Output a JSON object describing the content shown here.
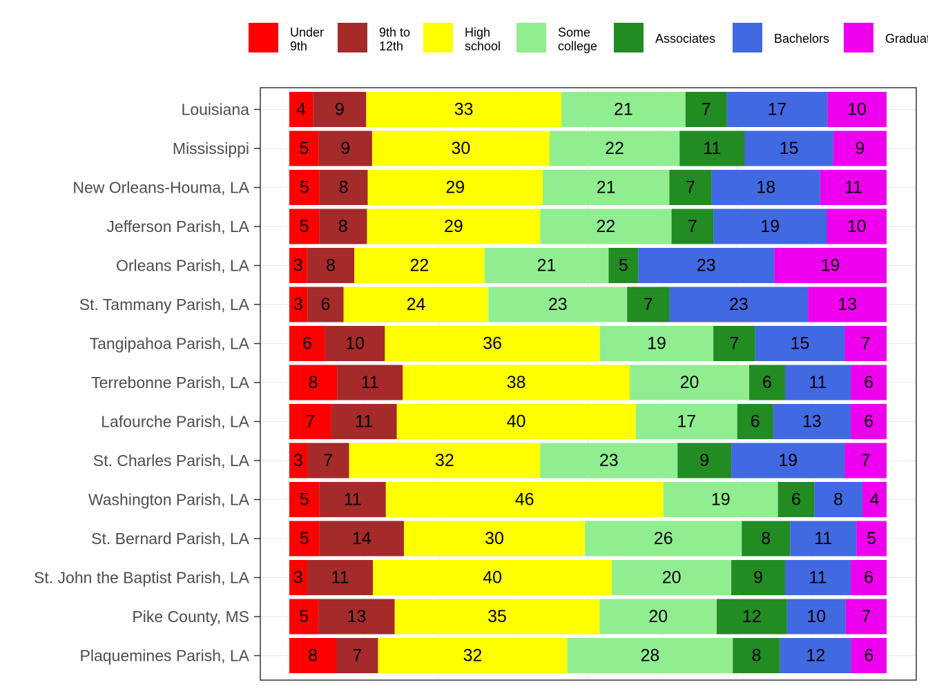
{
  "chart_data": {
    "type": "bar",
    "orientation": "horizontal",
    "stacked": "percent",
    "title": "",
    "xlabel": "",
    "ylabel": "",
    "legend_position": "top",
    "grid": true,
    "categories": [
      "Louisiana",
      "Mississippi",
      "New Orleans-Houma, LA",
      "Jefferson Parish, LA",
      "Orleans Parish, LA",
      "St. Tammany Parish, LA",
      "Tangipahoa Parish, LA",
      "Terrebonne Parish, LA",
      "Lafourche Parish, LA",
      "St. Charles Parish, LA",
      "Washington Parish, LA",
      "St. Bernard Parish, LA",
      "St. John the Baptist Parish, LA",
      "Pike County, MS",
      "Plaquemines Parish, LA"
    ],
    "series": [
      {
        "name": "Under\n9th",
        "color": "#ff0000",
        "values": [
          4,
          5,
          5,
          5,
          3,
          3,
          6,
          8,
          7,
          3,
          5,
          5,
          3,
          5,
          8
        ]
      },
      {
        "name": "9th to\n12th",
        "color": "#a52a2a",
        "values": [
          9,
          9,
          8,
          8,
          8,
          6,
          10,
          11,
          11,
          7,
          11,
          14,
          11,
          13,
          7
        ]
      },
      {
        "name": "High\nschool",
        "color": "#ffff00",
        "values": [
          33,
          30,
          29,
          29,
          22,
          24,
          36,
          38,
          40,
          32,
          46,
          30,
          40,
          35,
          32
        ]
      },
      {
        "name": "Some\ncollege",
        "color": "#90ee90",
        "values": [
          21,
          22,
          21,
          22,
          21,
          23,
          19,
          20,
          17,
          23,
          19,
          26,
          20,
          20,
          28
        ]
      },
      {
        "name": "Associates",
        "color": "#228b22",
        "values": [
          7,
          11,
          7,
          7,
          5,
          7,
          7,
          6,
          6,
          9,
          6,
          8,
          9,
          12,
          8
        ]
      },
      {
        "name": "Bachelors",
        "color": "#4169e1",
        "values": [
          17,
          15,
          18,
          19,
          23,
          23,
          15,
          11,
          13,
          19,
          8,
          11,
          11,
          10,
          12
        ]
      },
      {
        "name": "Graduate",
        "color": "#ee00ee",
        "values": [
          10,
          9,
          11,
          10,
          19,
          13,
          7,
          6,
          6,
          7,
          4,
          5,
          6,
          7,
          6
        ]
      }
    ]
  }
}
